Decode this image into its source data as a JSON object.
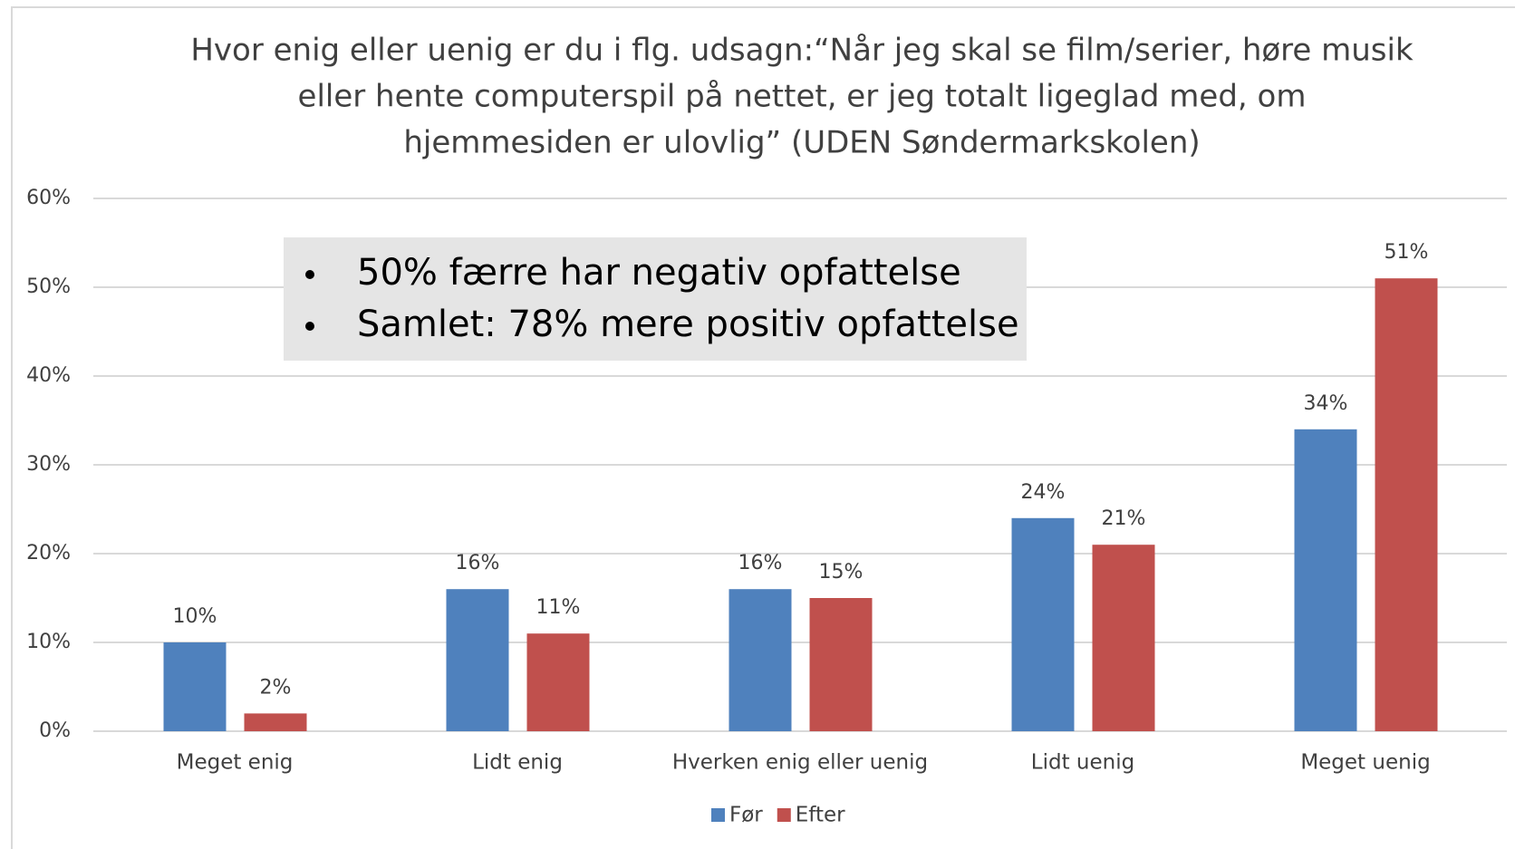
{
  "chart_data": {
    "type": "bar",
    "title": [
      "Hvor enig eller uenig er du i flg. udsagn:“Når jeg skal se film/serier, høre musik",
      "eller hente computerspil på nettet, er jeg totalt ligeglad med, om",
      "hjemmesiden  er ulovlig” (UDEN Søndermarkskolen)"
    ],
    "annotations": [
      "50% færre har negativ opfattelse",
      "Samlet: 78% mere positiv opfattelse"
    ],
    "categories": [
      "Meget enig",
      "Lidt enig",
      "Hverken enig eller uenig",
      "Lidt uenig",
      "Meget uenig"
    ],
    "series": [
      {
        "name": "Før",
        "color": "#4f81bd",
        "values": [
          10,
          16,
          16,
          24,
          34
        ],
        "value_labels": [
          "10%",
          "16%",
          "16%",
          "24%",
          "34%"
        ]
      },
      {
        "name": "Efter",
        "color": "#c0504d",
        "values": [
          2,
          11,
          15,
          21,
          51
        ],
        "value_labels": [
          "2%",
          "11%",
          "15%",
          "21%",
          "51%"
        ]
      }
    ],
    "ylim": [
      0,
      60
    ],
    "yticks": [
      {
        "value": 0,
        "label": "0%"
      },
      {
        "value": 10,
        "label": "10%"
      },
      {
        "value": 20,
        "label": "20%"
      },
      {
        "value": 30,
        "label": "30%"
      },
      {
        "value": 40,
        "label": "40%"
      },
      {
        "value": 50,
        "label": "50%"
      },
      {
        "value": 60,
        "label": "60%"
      }
    ],
    "grid": true,
    "legend": "bottom"
  }
}
